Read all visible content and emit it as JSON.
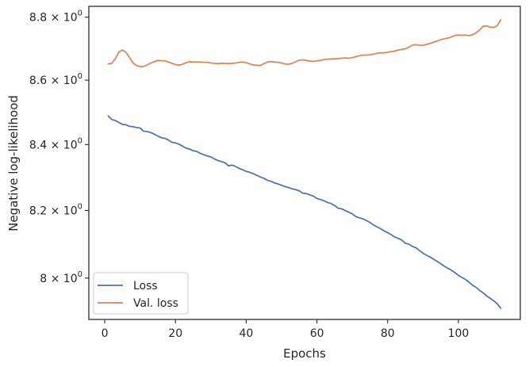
{
  "chart_data": {
    "type": "line",
    "title": "",
    "xlabel": "Epochs",
    "ylabel": "Negative log-likelihood",
    "y_scale": "log",
    "xlim": [
      -4.5,
      117.5
    ],
    "ylim": [
      7.88,
      8.835
    ],
    "x_ticks": [
      0,
      20,
      40,
      60,
      80,
      100
    ],
    "x_tick_labels": [
      "0",
      "20",
      "40",
      "60",
      "80",
      "100"
    ],
    "y_ticks": [
      8.0,
      8.2,
      8.4,
      8.6,
      8.8
    ],
    "y_tick_labels": [
      {
        "mant": "8",
        "exp": "0"
      },
      {
        "mant": "8.2",
        "exp": "0"
      },
      {
        "mant": "8.4",
        "exp": "0"
      },
      {
        "mant": "8.6",
        "exp": "0"
      },
      {
        "mant": "8.8",
        "exp": "0"
      }
    ],
    "grid": false,
    "legend_position": "lower-left",
    "series": [
      {
        "name": "Loss",
        "color": "#4c72b0",
        "x": [
          1,
          2,
          3,
          4,
          5,
          6,
          7,
          8,
          9,
          10,
          11,
          12,
          13,
          14,
          15,
          16,
          17,
          18,
          19,
          20,
          21,
          22,
          23,
          24,
          25,
          26,
          27,
          28,
          29,
          30,
          31,
          32,
          33,
          34,
          35,
          36,
          37,
          38,
          39,
          40,
          41,
          42,
          43,
          44,
          45,
          46,
          47,
          48,
          49,
          50,
          51,
          52,
          53,
          54,
          55,
          56,
          57,
          58,
          59,
          60,
          61,
          62,
          63,
          64,
          65,
          66,
          67,
          68,
          69,
          70,
          71,
          72,
          73,
          74,
          75,
          76,
          77,
          78,
          79,
          80,
          81,
          82,
          83,
          84,
          85,
          86,
          87,
          88,
          89,
          90,
          91,
          92,
          93,
          94,
          95,
          96,
          97,
          98,
          99,
          100,
          101,
          102,
          103,
          104,
          105,
          106,
          107,
          108,
          109,
          110,
          111,
          112
        ],
        "values": [
          8.488,
          8.477,
          8.474,
          8.468,
          8.462,
          8.461,
          8.456,
          8.455,
          8.452,
          8.451,
          8.441,
          8.44,
          8.437,
          8.432,
          8.426,
          8.421,
          8.419,
          8.414,
          8.407,
          8.405,
          8.401,
          8.395,
          8.389,
          8.386,
          8.381,
          8.379,
          8.373,
          8.369,
          8.365,
          8.362,
          8.356,
          8.351,
          8.348,
          8.344,
          8.335,
          8.337,
          8.333,
          8.327,
          8.323,
          8.318,
          8.315,
          8.311,
          8.306,
          8.301,
          8.297,
          8.291,
          8.288,
          8.283,
          8.28,
          8.276,
          8.272,
          8.269,
          8.265,
          8.263,
          8.259,
          8.252,
          8.251,
          8.247,
          8.243,
          8.236,
          8.233,
          8.229,
          8.224,
          8.221,
          8.215,
          8.207,
          8.205,
          8.2,
          8.195,
          8.19,
          8.182,
          8.178,
          8.175,
          8.17,
          8.164,
          8.157,
          8.151,
          8.146,
          8.139,
          8.134,
          8.128,
          8.121,
          8.117,
          8.112,
          8.102,
          8.1,
          8.093,
          8.089,
          8.081,
          8.073,
          8.067,
          8.062,
          8.055,
          8.049,
          8.042,
          8.035,
          8.029,
          8.023,
          8.016,
          8.008,
          8.002,
          7.996,
          7.988,
          7.979,
          7.973,
          7.964,
          7.957,
          7.948,
          7.941,
          7.934,
          7.925,
          7.912
        ]
      },
      {
        "name": "Val. loss",
        "color": "#dd8452",
        "x": [
          1,
          2,
          3,
          4,
          5,
          6,
          7,
          8,
          9,
          10,
          11,
          12,
          13,
          14,
          15,
          16,
          17,
          18,
          19,
          20,
          21,
          22,
          23,
          24,
          25,
          26,
          27,
          28,
          29,
          30,
          31,
          32,
          33,
          34,
          35,
          36,
          37,
          38,
          39,
          40,
          41,
          42,
          43,
          44,
          45,
          46,
          47,
          48,
          49,
          50,
          51,
          52,
          53,
          54,
          55,
          56,
          57,
          58,
          59,
          60,
          61,
          62,
          63,
          64,
          65,
          66,
          67,
          68,
          69,
          70,
          71,
          72,
          73,
          74,
          75,
          76,
          77,
          78,
          79,
          80,
          81,
          82,
          83,
          84,
          85,
          86,
          87,
          88,
          89,
          90,
          91,
          92,
          93,
          94,
          95,
          96,
          97,
          98,
          99,
          100,
          101,
          102,
          103,
          104,
          105,
          106,
          107,
          108,
          109,
          110,
          111,
          112
        ],
        "values": [
          8.651,
          8.653,
          8.668,
          8.689,
          8.695,
          8.688,
          8.672,
          8.654,
          8.646,
          8.643,
          8.643,
          8.648,
          8.654,
          8.658,
          8.662,
          8.661,
          8.661,
          8.657,
          8.653,
          8.649,
          8.647,
          8.65,
          8.655,
          8.658,
          8.657,
          8.657,
          8.657,
          8.656,
          8.656,
          8.654,
          8.653,
          8.652,
          8.653,
          8.653,
          8.652,
          8.653,
          8.654,
          8.656,
          8.657,
          8.655,
          8.651,
          8.648,
          8.647,
          8.646,
          8.652,
          8.657,
          8.659,
          8.657,
          8.656,
          8.654,
          8.651,
          8.65,
          8.653,
          8.658,
          8.663,
          8.664,
          8.662,
          8.66,
          8.659,
          8.661,
          8.662,
          8.665,
          8.666,
          8.667,
          8.667,
          8.668,
          8.669,
          8.67,
          8.669,
          8.671,
          8.674,
          8.677,
          8.679,
          8.679,
          8.68,
          8.682,
          8.685,
          8.686,
          8.686,
          8.688,
          8.69,
          8.692,
          8.695,
          8.697,
          8.699,
          8.704,
          8.711,
          8.712,
          8.71,
          8.71,
          8.713,
          8.716,
          8.72,
          8.724,
          8.728,
          8.731,
          8.733,
          8.737,
          8.741,
          8.743,
          8.742,
          8.743,
          8.741,
          8.744,
          8.75,
          8.759,
          8.771,
          8.772,
          8.768,
          8.767,
          8.773,
          8.792
        ]
      }
    ]
  }
}
